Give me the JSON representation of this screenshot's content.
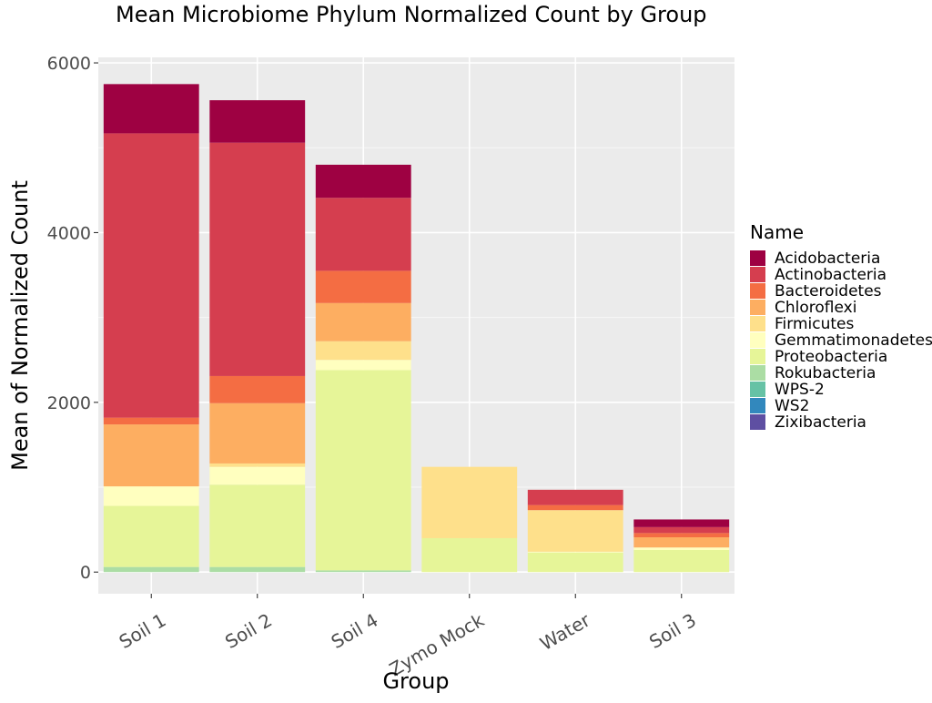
{
  "chart_data": {
    "type": "bar",
    "stacked": true,
    "title": "Mean Microbiome Phylum Normalized Count by Group",
    "xlabel": "Group",
    "ylabel": "Mean of Normalized Count",
    "categories": [
      "Soil 1",
      "Soil 2",
      "Soil 4",
      "Zymo Mock",
      "Water",
      "Soil 3"
    ],
    "ylim": [
      -255,
      6065
    ],
    "yticks": [
      0,
      2000,
      4000,
      6000
    ],
    "yticklabels": [
      "0",
      "2000",
      "4000",
      "6000"
    ],
    "grid": true,
    "legend": {
      "title": "Name",
      "position": "right"
    },
    "series": [
      {
        "name": "Zixibacteria",
        "color": "#5E4FA2",
        "values": [
          0,
          0,
          0,
          0,
          0,
          0
        ]
      },
      {
        "name": "WS2",
        "color": "#3288BD",
        "values": [
          0,
          0,
          0,
          0,
          0,
          0
        ]
      },
      {
        "name": "WPS-2",
        "color": "#66C2A5",
        "values": [
          0,
          0,
          0,
          0,
          0,
          0
        ]
      },
      {
        "name": "Rokubacteria",
        "color": "#ABDDA4",
        "values": [
          60,
          60,
          20,
          0,
          0,
          0
        ]
      },
      {
        "name": "Proteobacteria",
        "color": "#E6F598",
        "values": [
          720,
          970,
          2360,
          400,
          230,
          260
        ]
      },
      {
        "name": "Gemmatimonadetes",
        "color": "#FFFFBF",
        "values": [
          230,
          210,
          120,
          0,
          10,
          30
        ]
      },
      {
        "name": "Firmicutes",
        "color": "#FEE08B",
        "values": [
          0,
          40,
          220,
          840,
          490,
          0
        ]
      },
      {
        "name": "Chloroflexi",
        "color": "#FDAE61",
        "values": [
          730,
          710,
          450,
          0,
          0,
          120
        ]
      },
      {
        "name": "Bacteroidetes",
        "color": "#F46D43",
        "values": [
          80,
          320,
          380,
          0,
          60,
          50
        ]
      },
      {
        "name": "Actinobacteria",
        "color": "#D53E4F",
        "values": [
          3350,
          2750,
          860,
          0,
          180,
          70
        ]
      },
      {
        "name": "Acidobacteria",
        "color": "#9E0142",
        "values": [
          580,
          500,
          390,
          0,
          0,
          90
        ]
      }
    ]
  }
}
